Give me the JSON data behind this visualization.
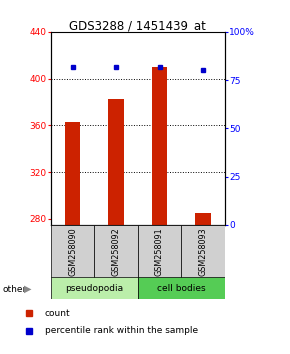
{
  "title": "GDS3288 / 1451439_at",
  "samples": [
    "GSM258090",
    "GSM258092",
    "GSM258091",
    "GSM258093"
  ],
  "bar_bottom": 275,
  "count_values": [
    363,
    383,
    410,
    285
  ],
  "percentile_values": [
    82,
    82,
    82,
    80
  ],
  "ylim_left": [
    275,
    440
  ],
  "ylim_right": [
    0,
    100
  ],
  "yticks_left": [
    280,
    320,
    360,
    400,
    440
  ],
  "yticks_right": [
    0,
    25,
    50,
    75,
    100
  ],
  "bar_color": "#cc2200",
  "dot_color": "#0000cc",
  "label_area_color": "#cccccc",
  "pseudo_color": "#bbeeaa",
  "cellbody_color": "#55cc55",
  "other_label": "other",
  "legend_count": "count",
  "legend_pct": "percentile rank within the sample",
  "gridline_y": [
    400,
    360,
    320
  ]
}
